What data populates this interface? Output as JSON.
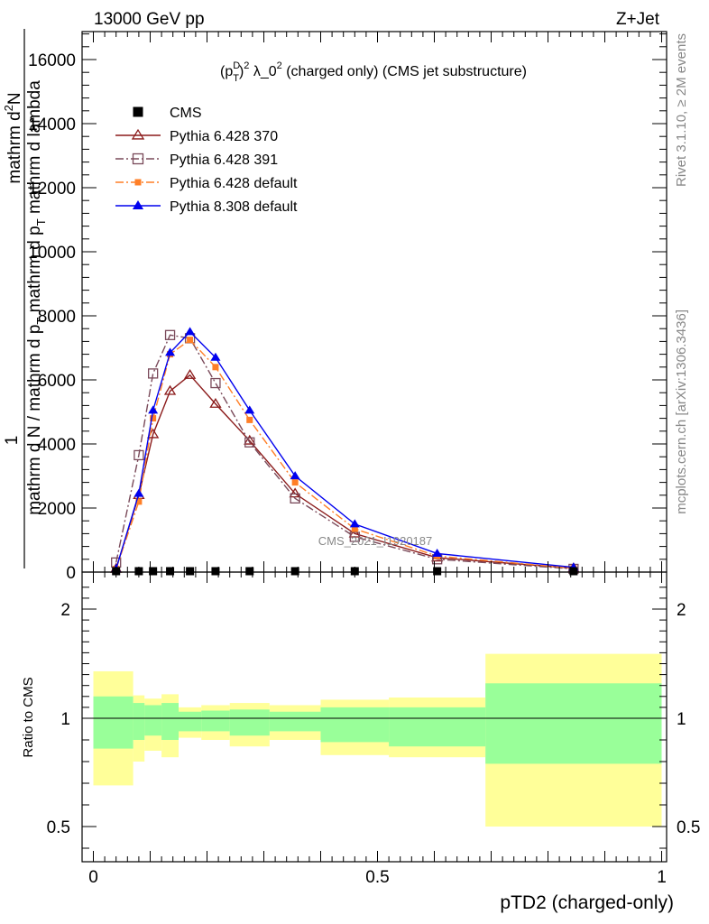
{
  "header": {
    "left": "13000 GeV pp",
    "right": "Z+Jet"
  },
  "side_labels": {
    "rivet": "Rivet 3.1.10, ≥ 2M events",
    "mcplots": "mcplots.cern.ch [arXiv:1306.3436]"
  },
  "watermark": "CMS_2021_I1920187",
  "chart_data": [
    {
      "type": "line",
      "title": "(p_T^D)^2 λ_0^2 (charged only) (CMS jet substructure)",
      "title_parts": {
        "p": "(p",
        "sup_d": "D",
        "sub_t": "T",
        "paren": ")",
        "sup2": "2",
        "lam": " λ_0",
        "sup2b": "2",
        "rest": " (charged only) (CMS jet substructure)"
      },
      "ylabel_parts": {
        "one": "1",
        "den1": "mathrm d N",
        "den2": "mathrm d p",
        "den2sub": "T",
        "den3": "mathrm d p",
        "num1": "mathrm d",
        "num1sup": "2",
        "num2": "N",
        "num3": "mathrm d p",
        "num3sub": "T",
        "num4": "mathrm d lambda"
      },
      "ylim": [
        0,
        17000
      ],
      "yticks": [
        0,
        2000,
        4000,
        6000,
        8000,
        10000,
        12000,
        14000,
        16000
      ],
      "ytick_labels": [
        "0",
        "2000",
        "4000",
        "6000",
        "8000",
        "10000",
        "12000",
        "14000",
        "16000"
      ],
      "xlim": [
        -0.02,
        1.01
      ],
      "legend_position": "top-left",
      "series": [
        {
          "name": "CMS",
          "color": "#000000",
          "marker": "filled-square",
          "line": "none",
          "x": [
            0.04,
            0.08,
            0.105,
            0.135,
            0.17,
            0.215,
            0.275,
            0.355,
            0.46,
            0.605,
            0.845
          ],
          "y": [
            0,
            0,
            0,
            0,
            0,
            0,
            0,
            0,
            0,
            0,
            0
          ]
        },
        {
          "name": "Pythia 6.428 370",
          "color": "#8b1a1a",
          "marker": "open-triangle",
          "line": "solid",
          "x": [
            0.04,
            0.08,
            0.105,
            0.135,
            0.17,
            0.215,
            0.275,
            0.355,
            0.46,
            0.605,
            0.845
          ],
          "y": [
            100,
            2400,
            4300,
            5650,
            6150,
            5250,
            4100,
            2450,
            1200,
            450,
            120
          ]
        },
        {
          "name": "Pythia 6.428 391",
          "color": "#7a4a5a",
          "marker": "open-square",
          "line": "dash-dot",
          "x": [
            0.04,
            0.08,
            0.105,
            0.135,
            0.17,
            0.215,
            0.275,
            0.355,
            0.46,
            0.605,
            0.845
          ],
          "y": [
            300,
            3650,
            6200,
            7400,
            7300,
            5900,
            4050,
            2300,
            1100,
            400,
            100
          ]
        },
        {
          "name": "Pythia 6.428 default",
          "color": "#ff7f27",
          "marker": "filled-square",
          "line": "dash-dot",
          "x": [
            0.04,
            0.08,
            0.105,
            0.135,
            0.17,
            0.215,
            0.275,
            0.355,
            0.46,
            0.605,
            0.845
          ],
          "y": [
            100,
            2200,
            4800,
            6800,
            7250,
            6400,
            4750,
            2800,
            1350,
            500,
            120
          ]
        },
        {
          "name": "Pythia 8.308 default",
          "color": "#0000ee",
          "marker": "filled-triangle",
          "line": "solid",
          "x": [
            0.04,
            0.08,
            0.105,
            0.135,
            0.17,
            0.215,
            0.275,
            0.355,
            0.46,
            0.605,
            0.845
          ],
          "y": [
            100,
            2450,
            5050,
            6850,
            7500,
            6700,
            5050,
            3000,
            1500,
            580,
            150
          ]
        }
      ]
    },
    {
      "type": "area",
      "ylabel": "Ratio to CMS",
      "xlabel": "pTD2 (charged-only)",
      "ylim": [
        0.35,
        2.3
      ],
      "yticks": [
        0.5,
        1,
        2
      ],
      "ytick_labels": [
        "0.5",
        "1",
        "2"
      ],
      "xticks": [
        0,
        0.5,
        1
      ],
      "xtick_labels": [
        "0",
        "0.5",
        "1"
      ],
      "reference_line": 1,
      "bins": [
        {
          "x0": 0.0,
          "x1": 0.07,
          "stat_lo": 0.86,
          "stat_hi": 1.2,
          "tot_lo": 0.69,
          "tot_hi": 1.43
        },
        {
          "x0": 0.07,
          "x1": 0.09,
          "stat_lo": 0.9,
          "stat_hi": 1.14,
          "tot_lo": 0.8,
          "tot_hi": 1.21
        },
        {
          "x0": 0.09,
          "x1": 0.12,
          "stat_lo": 0.92,
          "stat_hi": 1.12,
          "tot_lo": 0.85,
          "tot_hi": 1.18
        },
        {
          "x0": 0.12,
          "x1": 0.15,
          "stat_lo": 0.9,
          "stat_hi": 1.14,
          "tot_lo": 0.82,
          "tot_hi": 1.22
        },
        {
          "x0": 0.15,
          "x1": 0.19,
          "stat_lo": 0.94,
          "stat_hi": 1.06,
          "tot_lo": 0.91,
          "tot_hi": 1.1
        },
        {
          "x0": 0.19,
          "x1": 0.24,
          "stat_lo": 0.94,
          "stat_hi": 1.07,
          "tot_lo": 0.9,
          "tot_hi": 1.12
        },
        {
          "x0": 0.24,
          "x1": 0.31,
          "stat_lo": 0.92,
          "stat_hi": 1.08,
          "tot_lo": 0.87,
          "tot_hi": 1.14
        },
        {
          "x0": 0.31,
          "x1": 0.4,
          "stat_lo": 0.94,
          "stat_hi": 1.06,
          "tot_lo": 0.9,
          "tot_hi": 1.12
        },
        {
          "x0": 0.4,
          "x1": 0.52,
          "stat_lo": 0.89,
          "stat_hi": 1.1,
          "tot_lo": 0.83,
          "tot_hi": 1.17
        },
        {
          "x0": 0.52,
          "x1": 0.69,
          "stat_lo": 0.87,
          "stat_hi": 1.1,
          "tot_lo": 0.82,
          "tot_hi": 1.19
        },
        {
          "x0": 0.69,
          "x1": 1.0,
          "stat_lo": 0.79,
          "stat_hi": 1.32,
          "tot_lo": 0.5,
          "tot_hi": 1.59
        }
      ],
      "stat_color": "#99ff99",
      "total_color": "#ffff99"
    }
  ]
}
